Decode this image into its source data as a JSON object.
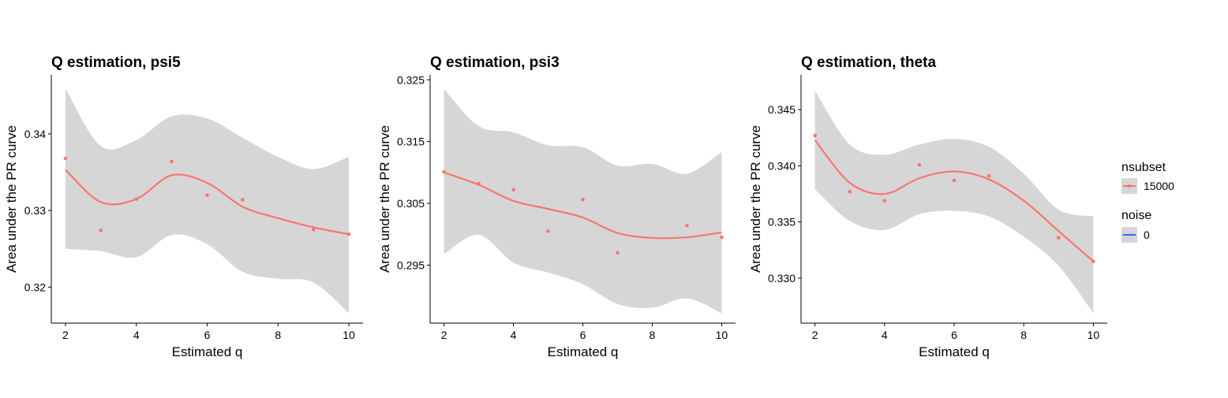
{
  "chart_data": [
    {
      "type": "line",
      "title": "Q estimation, psi5",
      "xlabel": "Estimated q",
      "ylabel": "Area under the PR curve",
      "xlim": [
        1.6,
        10.4
      ],
      "ylim": [
        0.3153,
        0.3477
      ],
      "xticks": [
        2,
        4,
        6,
        8,
        10
      ],
      "yticks": [
        0.32,
        0.33,
        0.34
      ],
      "ytick_labels": [
        "0.32",
        "0.33",
        "0.34"
      ],
      "grid": false,
      "points": {
        "x": [
          2,
          3,
          4,
          5,
          6,
          7,
          9,
          10
        ],
        "y": [
          0.3368,
          0.3274,
          0.3315,
          0.3364,
          0.332,
          0.3314,
          0.3275,
          0.3269
        ]
      },
      "smooth": {
        "x": [
          2,
          3,
          4,
          5,
          6,
          7,
          8,
          9,
          10
        ],
        "y": [
          0.3353,
          0.3311,
          0.3315,
          0.3346,
          0.3336,
          0.3305,
          0.329,
          0.3278,
          0.3269
        ],
        "upper": [
          0.3459,
          0.3384,
          0.3392,
          0.3423,
          0.342,
          0.3395,
          0.337,
          0.3354,
          0.337
        ],
        "lower": [
          0.325,
          0.3247,
          0.3239,
          0.3268,
          0.3256,
          0.322,
          0.3211,
          0.3206,
          0.3166
        ]
      }
    },
    {
      "type": "line",
      "title": "Q estimation, psi3",
      "xlabel": "Estimated q",
      "ylabel": "Area under the PR curve",
      "xlim": [
        1.6,
        10.4
      ],
      "ylim": [
        0.2856,
        0.3258
      ],
      "xticks": [
        2,
        4,
        6,
        8,
        10
      ],
      "yticks": [
        0.295,
        0.305,
        0.315,
        0.325
      ],
      "ytick_labels": [
        "0.295",
        "0.305",
        "0.315",
        "0.325"
      ],
      "grid": false,
      "points": {
        "x": [
          2,
          3,
          4,
          5,
          6,
          7,
          9,
          10
        ],
        "y": [
          0.3101,
          0.3082,
          0.3072,
          0.3005,
          0.3056,
          0.297,
          0.3014,
          0.2995
        ]
      },
      "smooth": {
        "x": [
          2,
          3,
          4,
          5,
          6,
          7,
          8,
          9,
          10
        ],
        "y": [
          0.31,
          0.308,
          0.3054,
          0.3041,
          0.3027,
          0.3002,
          0.2994,
          0.2995,
          0.3003
        ],
        "upper": [
          0.3235,
          0.3175,
          0.3165,
          0.3144,
          0.3141,
          0.3111,
          0.3114,
          0.3098,
          0.3133
        ],
        "lower": [
          0.2968,
          0.2999,
          0.2954,
          0.2938,
          0.2919,
          0.2887,
          0.2881,
          0.2896,
          0.2872
        ]
      }
    },
    {
      "type": "line",
      "title": "Q estimation, theta",
      "xlabel": "Estimated q",
      "ylabel": "Area under the PR curve",
      "xlim": [
        1.6,
        10.4
      ],
      "ylim": [
        0.326,
        0.3481
      ],
      "xticks": [
        2,
        4,
        6,
        8,
        10
      ],
      "yticks": [
        0.33,
        0.335,
        0.34,
        0.345
      ],
      "ytick_labels": [
        "0.330",
        "0.335",
        "0.340",
        "0.345"
      ],
      "grid": false,
      "points": {
        "x": [
          2,
          3,
          4,
          5,
          6,
          7,
          9,
          10
        ],
        "y": [
          0.3427,
          0.3377,
          0.3369,
          0.3401,
          0.3387,
          0.3391,
          0.3336,
          0.3315
        ]
      },
      "smooth": {
        "x": [
          2,
          3,
          4,
          5,
          6,
          7,
          8,
          9,
          10
        ],
        "y": [
          0.3423,
          0.3385,
          0.3375,
          0.3389,
          0.3395,
          0.3388,
          0.3369,
          0.3342,
          0.3315
        ],
        "upper": [
          0.3467,
          0.3419,
          0.341,
          0.3419,
          0.3424,
          0.3417,
          0.3393,
          0.3361,
          0.3355
        ],
        "lower": [
          0.3379,
          0.3351,
          0.3343,
          0.3357,
          0.336,
          0.3355,
          0.3337,
          0.3311,
          0.3269
        ]
      }
    }
  ],
  "legend": {
    "placement": "right",
    "groups": [
      {
        "title": "nsubset",
        "label": "15000",
        "color": "#F8766D"
      },
      {
        "title": "noise",
        "label": "0",
        "color": "#3366FF"
      }
    ]
  },
  "colors": {
    "line": "#F8766D",
    "ribbon": "#D6D6D6",
    "noise": "#3366FF"
  }
}
